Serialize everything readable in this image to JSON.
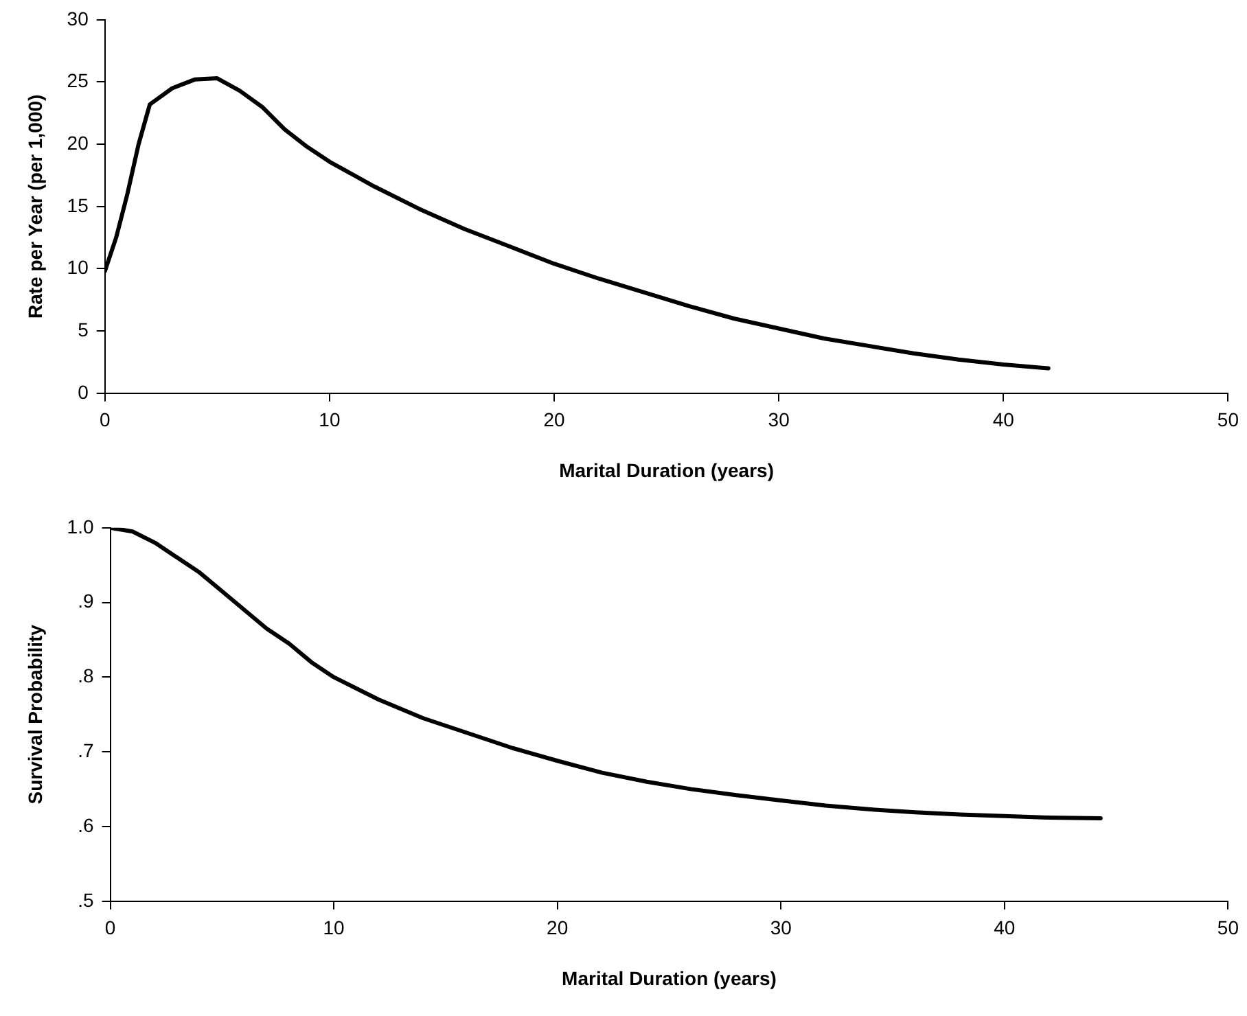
{
  "chart_data": [
    {
      "type": "line",
      "xlabel": "Marital Duration (years)",
      "ylabel": "Rate per Year (per 1,000)",
      "x": [
        0,
        0.5,
        1,
        1.5,
        2,
        3,
        4,
        5,
        6,
        7,
        8,
        9,
        10,
        12,
        14,
        16,
        18,
        20,
        22,
        24,
        26,
        28,
        30,
        32,
        34,
        36,
        38,
        40,
        42
      ],
      "series": [
        {
          "color": "#000000",
          "values": [
            9.8,
            12.5,
            16,
            20,
            23.2,
            24.5,
            25.2,
            25.3,
            24.3,
            23,
            21.2,
            19.8,
            18.6,
            16.6,
            14.8,
            13.2,
            11.8,
            10.4,
            9.2,
            8.1,
            7,
            6,
            5.2,
            4.4,
            3.8,
            3.2,
            2.7,
            2.3,
            2
          ]
        }
      ],
      "xlim": [
        0,
        50
      ],
      "xticks": [
        0,
        10,
        20,
        30,
        40,
        50
      ],
      "ylim": [
        0,
        30
      ],
      "yticks": [
        0,
        5,
        10,
        15,
        20,
        25,
        30
      ]
    },
    {
      "type": "line",
      "xlabel": "Marital Duration (years)",
      "ylabel": "Survival Probability",
      "x": [
        0,
        1,
        2,
        3,
        4,
        5,
        6,
        7,
        8,
        9,
        10,
        12,
        14,
        16,
        18,
        20,
        22,
        24,
        26,
        28,
        30,
        32,
        34,
        36,
        38,
        40,
        42,
        44.3
      ],
      "series": [
        {
          "color": "#000000",
          "values": [
            1,
            0.995,
            0.98,
            0.96,
            0.94,
            0.915,
            0.89,
            0.865,
            0.845,
            0.82,
            0.8,
            0.77,
            0.745,
            0.725,
            0.705,
            0.688,
            0.672,
            0.66,
            0.65,
            0.642,
            0.635,
            0.628,
            0.623,
            0.619,
            0.616,
            0.614,
            0.612,
            0.611
          ]
        }
      ],
      "xlim": [
        0,
        50
      ],
      "xticks": [
        0,
        10,
        20,
        30,
        40,
        50
      ],
      "ylim": [
        0.5,
        1
      ],
      "yticks": [
        {
          "value": 0.5,
          "label": ".5"
        },
        {
          "value": 0.6,
          "label": ".6"
        },
        {
          "value": 0.7,
          "label": ".7"
        },
        {
          "value": 0.8,
          "label": ".8"
        },
        {
          "value": 0.9,
          "label": ".9"
        },
        {
          "value": 1,
          "label": "1.0"
        }
      ]
    }
  ]
}
